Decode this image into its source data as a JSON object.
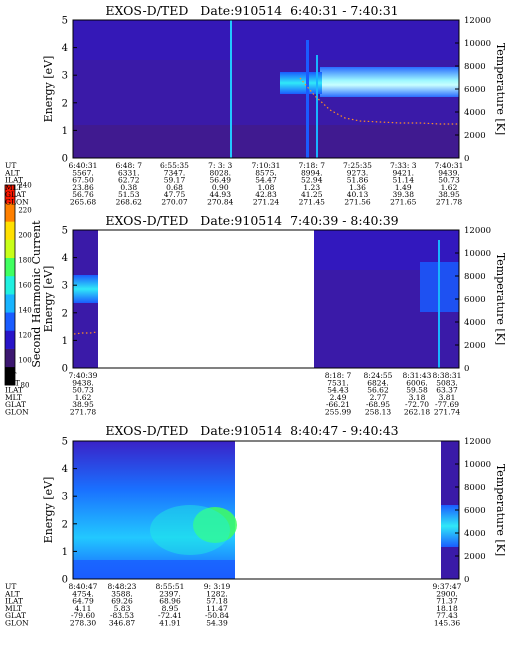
{
  "colorbar": {
    "label": "Second Harmonic Current",
    "ticks": [
      "240",
      "220",
      "200",
      "180",
      "160",
      "140",
      "120",
      "100",
      "80"
    ],
    "colors": [
      "#000000",
      "#3c1770",
      "#2814c8",
      "#1a5cff",
      "#18b4ff",
      "#20f0e0",
      "#40ff60",
      "#c8ff18",
      "#ffe000",
      "#ff8000",
      "#ff1800"
    ]
  },
  "chart_data": [
    {
      "type": "heatmap",
      "title": "EXOS-D/TED   Date:910514  6:40:31 - 7:40:31",
      "ylabel": "Energy [eV]",
      "y2label": "Temperature [K]",
      "ylim": [
        0,
        5
      ],
      "y2lim": [
        0,
        12000
      ],
      "yticks": [
        "0",
        "1",
        "2",
        "3",
        "4",
        "5"
      ],
      "y2ticks": [
        "0",
        "2000",
        "4000",
        "6000",
        "8000",
        "10000",
        "12000"
      ],
      "data_coverage": [
        [
          0.0,
          1.0
        ]
      ],
      "table": {
        "labels": [
          "UT",
          "ALT",
          "ILAT",
          "MLT",
          "GLAT",
          "GLON"
        ],
        "columns": [
          [
            "6:40:31",
            "5567.",
            "67.50",
            "23.86",
            "56.76",
            "265.68"
          ],
          [
            "6:48: 7",
            "6331.",
            "62.72",
            "0.38",
            "51.53",
            "268.62"
          ],
          [
            "6:55:35",
            "7347.",
            "59.17",
            "0.68",
            "47.75",
            "270.07"
          ],
          [
            "7: 3: 3",
            "8028.",
            "56.49",
            "0.90",
            "44.93",
            "270.84"
          ],
          [
            "7:10:31",
            "8575.",
            "54.47",
            "1.08",
            "42.83",
            "271.24"
          ],
          [
            "7:18: 7",
            "8994.",
            "52.94",
            "1.23",
            "41.25",
            "271.45"
          ],
          [
            "7:25:35",
            "9273.",
            "51.86",
            "1.36",
            "40.13",
            "271.56"
          ],
          [
            "7:33: 3",
            "9421.",
            "51.14",
            "1.49",
            "39.38",
            "271.65"
          ],
          [
            "7:40:31",
            "9439.",
            "50.73",
            "1.62",
            "38.95",
            "271.78"
          ]
        ]
      }
    },
    {
      "type": "heatmap",
      "title": "EXOS-D/TED   Date:910514  7:40:39 - 8:40:39",
      "ylabel": "Energy [eV]",
      "y2label": "Temperature [K]",
      "ylim": [
        0,
        5
      ],
      "y2lim": [
        0,
        12000
      ],
      "yticks": [
        "0",
        "1",
        "2",
        "3",
        "4",
        "5"
      ],
      "y2ticks": [
        "0",
        "2000",
        "4000",
        "6000",
        "8000",
        "10000",
        "12000"
      ],
      "data_coverage": [
        [
          0.0,
          0.08
        ],
        [
          0.635,
          1.0
        ]
      ],
      "table": {
        "labels": [
          "UT",
          "ALT",
          "ILAT",
          "MLT",
          "GLAT",
          "GLON"
        ],
        "columns": [
          [
            "7:40:39",
            "9438.",
            "50.73",
            "1.62",
            "38.95",
            "271.78"
          ],
          [
            "8:18: 7",
            "7531.",
            "54.43",
            "2.49",
            "-66.21",
            "255.99"
          ],
          [
            "8:24:55",
            "6824.",
            "56.62",
            "2.77",
            "-68.95",
            "258.13"
          ],
          [
            "8:31:43",
            "6006.",
            "59.58",
            "3.18",
            "-72.70",
            "262.18"
          ],
          [
            "8:38:31",
            "5083.",
            "63.37",
            "3.81",
            "-77.69",
            "271.74"
          ]
        ]
      }
    },
    {
      "type": "heatmap",
      "title": "EXOS-D/TED   Date:910514  8:40:47 - 9:40:43",
      "ylabel": "Energy [eV]",
      "y2label": "Temperature [K]",
      "ylim": [
        0,
        5
      ],
      "y2lim": [
        0,
        12000
      ],
      "yticks": [
        "0",
        "1",
        "2",
        "3",
        "4",
        "5"
      ],
      "y2ticks": [
        "0",
        "2000",
        "4000",
        "6000",
        "8000",
        "10000",
        "12000"
      ],
      "data_coverage": [
        [
          0.0,
          0.46
        ],
        [
          0.955,
          1.0
        ]
      ],
      "table": {
        "labels": [
          "UT",
          "ALT",
          "ILAT",
          "MLT",
          "GLAT",
          "GLON"
        ],
        "columns": [
          [
            "8:40:47",
            "4754.",
            "64.79",
            "4.11",
            "-79.60",
            "278.30"
          ],
          [
            "8:48:23",
            "3588.",
            "69.26",
            "5.83",
            "-83.53",
            "346.87"
          ],
          [
            "8:55:51",
            "2397.",
            "68.96",
            "8.95",
            "-72.41",
            "41.91"
          ],
          [
            "9: 3:19",
            "1282.",
            "57.18",
            "11.47",
            "-50.84",
            "54.39"
          ],
          [
            "9:37:47",
            "2900.",
            "71.37",
            "18.18",
            "77.43",
            "145.36"
          ]
        ]
      }
    }
  ]
}
